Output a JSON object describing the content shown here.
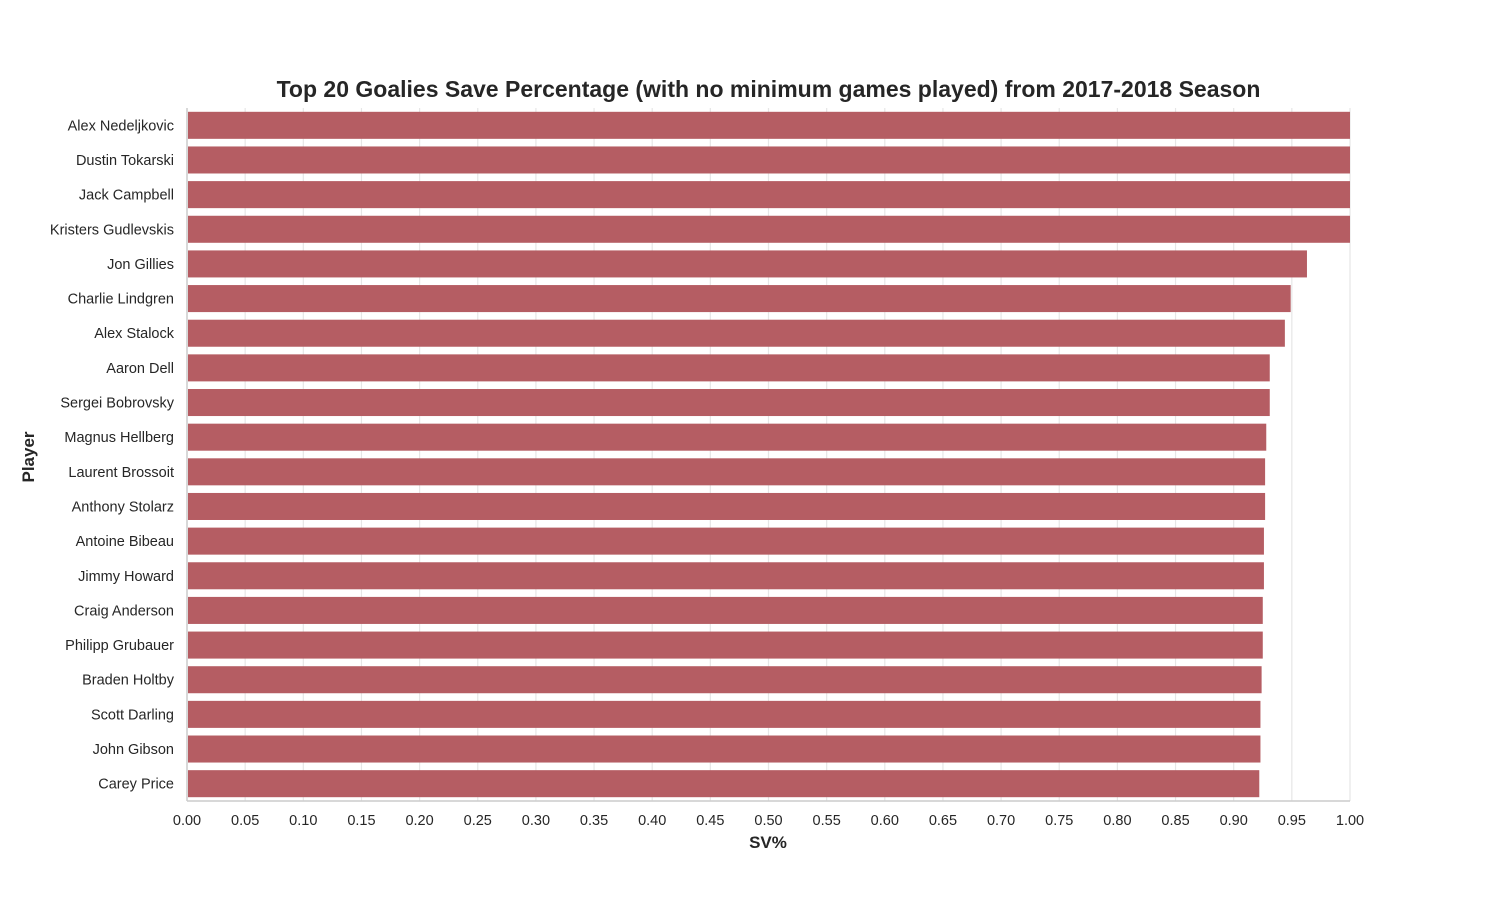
{
  "chart_data": {
    "type": "bar",
    "orientation": "horizontal",
    "title": "Top 20 Goalies Save Percentage (with no minimum games played) from 2017-2018 Season",
    "xlabel": "SV%",
    "ylabel": "Player",
    "xlim": [
      0,
      1.0
    ],
    "x_ticks": [
      "0.00",
      "0.05",
      "0.10",
      "0.15",
      "0.20",
      "0.25",
      "0.30",
      "0.35",
      "0.40",
      "0.45",
      "0.50",
      "0.55",
      "0.60",
      "0.65",
      "0.70",
      "0.75",
      "0.80",
      "0.85",
      "0.90",
      "0.95",
      "1.00"
    ],
    "grid": "vertical",
    "bar_color": "#b55d63",
    "categories": [
      "Alex Nedeljkovic",
      "Dustin Tokarski",
      "Jack Campbell",
      "Kristers Gudlevskis",
      "Jon Gillies",
      "Charlie Lindgren",
      "Alex Stalock",
      "Aaron Dell",
      "Sergei Bobrovsky",
      "Magnus Hellberg",
      "Laurent Brossoit",
      "Anthony Stolarz",
      "Antoine Bibeau",
      "Jimmy Howard",
      "Craig Anderson",
      "Philipp Grubauer",
      "Braden Holtby",
      "Scott Darling",
      "John Gibson",
      "Carey Price"
    ],
    "values": [
      1.0,
      1.0,
      1.0,
      1.0,
      0.963,
      0.949,
      0.944,
      0.931,
      0.931,
      0.928,
      0.927,
      0.927,
      0.926,
      0.926,
      0.925,
      0.925,
      0.924,
      0.923,
      0.923,
      0.922
    ]
  }
}
